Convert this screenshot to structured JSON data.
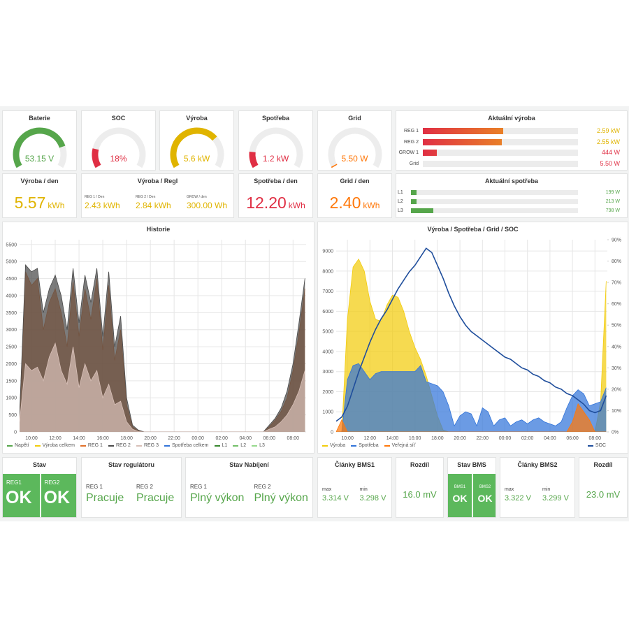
{
  "gauges": [
    {
      "title": "Baterie",
      "value": 53.15,
      "label": "53.15 V",
      "range": [
        42,
        56
      ],
      "color": "#56a64b"
    },
    {
      "title": "SOC",
      "value": 18,
      "label": "18%",
      "range": [
        0,
        100
      ],
      "color": "#e02f44"
    },
    {
      "title": "Výroba",
      "value": 5.6,
      "label": "5.6 kW",
      "range": [
        0,
        8
      ],
      "color": "#e0b400"
    },
    {
      "title": "Spotřeba",
      "value": 1.2,
      "label": "1.2 kW",
      "range": [
        0,
        8
      ],
      "color": "#e02f44"
    },
    {
      "title": "Grid",
      "value": 5.5,
      "label": "5.50 W",
      "range": [
        0,
        500
      ],
      "color": "#ff780a"
    }
  ],
  "aktualni_vyroba": {
    "title": "Aktuální výroba",
    "max": 5000,
    "rows": [
      {
        "name": "REG 1",
        "value": 2590,
        "label": "2.59 kW",
        "color": "#e0b400"
      },
      {
        "name": "REG 2",
        "value": 2550,
        "label": "2.55 kW",
        "color": "#e0b400"
      },
      {
        "name": "GROW 1",
        "value": 444,
        "label": "444 W",
        "color": "#e02f44"
      },
      {
        "name": "Grid",
        "value": 5.5,
        "label": "5.50 W",
        "color": "#e02f44"
      }
    ]
  },
  "aktualni_spotreba": {
    "title": "Aktuální spotřeba",
    "max": 6000,
    "rows": [
      {
        "name": "L1",
        "value": 199,
        "label": "199 W",
        "color": "#56a64b"
      },
      {
        "name": "L2",
        "value": 213,
        "label": "213 W",
        "color": "#56a64b"
      },
      {
        "name": "L3",
        "value": 798,
        "label": "798 W",
        "color": "#56a64b"
      }
    ]
  },
  "stats": [
    {
      "title": "Výroba / den",
      "value": "5.57",
      "unit": "kWh",
      "color": "#e0b400"
    },
    {
      "title": "Spotřeba / den",
      "value": "12.20",
      "unit": "kWh",
      "color": "#e02f44"
    },
    {
      "title": "Grid / den",
      "value": "2.40",
      "unit": "kWh",
      "color": "#ff780a"
    }
  ],
  "vyroba_regl": {
    "title": "Výroba / Regl",
    "color": "#e0b400",
    "items": [
      {
        "label": "REG 1 / Den",
        "value": "2.43 kWh"
      },
      {
        "label": "REG 2 / Den",
        "value": "2.84 kWh"
      },
      {
        "label": "GROW / den",
        "value": "300.00 Wh"
      }
    ]
  },
  "historie": {
    "type": "area",
    "title": "Historie",
    "grid": true,
    "x": [
      9,
      9.5,
      10,
      10.5,
      11,
      11.5,
      12,
      12.5,
      13,
      13.5,
      14,
      14.5,
      15,
      15.5,
      16,
      16.5,
      17,
      17.5,
      18,
      18.5,
      19,
      19.5,
      20,
      20.5,
      21,
      21.5,
      22,
      22.5,
      23,
      23.5,
      24,
      24.5,
      25,
      25.5,
      26,
      26.5,
      27,
      27.5,
      28,
      28.5,
      29,
      29.5,
      30,
      30.5,
      31,
      31.5,
      32,
      32.5,
      33
    ],
    "xlim": [
      9,
      33.1
    ],
    "ylim": [
      0,
      5640
    ],
    "yticks": [
      0,
      500,
      1000,
      1500,
      2000,
      2500,
      3000,
      3500,
      4000,
      4500,
      5000,
      5500
    ],
    "xticks": [
      {
        "value": 10,
        "label": "10:00"
      },
      {
        "value": 12,
        "label": "12:00"
      },
      {
        "value": 14,
        "label": "14:00"
      },
      {
        "value": 16,
        "label": "16:00"
      },
      {
        "value": 18,
        "label": "18:00"
      },
      {
        "value": 20,
        "label": "20:00"
      },
      {
        "value": 22,
        "label": "22:00"
      },
      {
        "value": 24,
        "label": "00:00"
      },
      {
        "value": 26,
        "label": "02:00"
      },
      {
        "value": 28,
        "label": "04:00"
      },
      {
        "value": 30,
        "label": "06:00"
      },
      {
        "value": 32,
        "label": "08:00"
      }
    ],
    "series": [
      {
        "name": "Napětí",
        "color": "#56a64b"
      },
      {
        "name": "Výroba celkem",
        "color": "#f2cc0c"
      },
      {
        "name": "REG 1",
        "color": "#e0702a",
        "values": [
          400,
          4700,
          4300,
          4500,
          3000,
          3800,
          4200,
          3500,
          2500,
          4400,
          2800,
          4200,
          3300,
          4500,
          2400,
          4300,
          2100,
          3000,
          800,
          150,
          30,
          0,
          0,
          0,
          0,
          0,
          0,
          0,
          0,
          0,
          0,
          0,
          0,
          0,
          0,
          0,
          0,
          0,
          0,
          0,
          0,
          0,
          150,
          350,
          600,
          1000,
          1800,
          2900,
          4200
        ]
      },
      {
        "name": "REG 2",
        "color": "#4a4a4a",
        "values": [
          500,
          4900,
          4700,
          4800,
          3500,
          4200,
          4600,
          4000,
          3000,
          4800,
          3200,
          4600,
          3800,
          4800,
          2800,
          4700,
          2500,
          3400,
          1000,
          200,
          50,
          0,
          0,
          0,
          0,
          0,
          0,
          0,
          0,
          0,
          0,
          0,
          0,
          0,
          0,
          0,
          0,
          0,
          0,
          0,
          0,
          0,
          200,
          400,
          700,
          1200,
          2000,
          3200,
          4500
        ]
      },
      {
        "name": "REG 3",
        "color": "#d8c0b8",
        "values": [
          300,
          2000,
          1800,
          1900,
          1500,
          2200,
          2600,
          1800,
          1400,
          2500,
          1300,
          2000,
          1500,
          1800,
          1000,
          1400,
          800,
          900,
          300,
          80,
          10,
          0,
          0,
          0,
          0,
          0,
          0,
          0,
          0,
          0,
          0,
          0,
          0,
          0,
          0,
          0,
          0,
          0,
          0,
          0,
          0,
          0,
          80,
          150,
          300,
          500,
          800,
          1200,
          1800
        ]
      },
      {
        "name": "Spotřeba celkem",
        "color": "#3274d9"
      },
      {
        "name": "L1",
        "color": "#37872d"
      },
      {
        "name": "L2",
        "color": "#73bf69"
      },
      {
        "name": "L3",
        "color": "#96d98d"
      }
    ]
  },
  "vyroba_spotreba": {
    "type": "area",
    "title": "Výroba / Spotřeba / Grid / SOC",
    "grid": true,
    "x": [
      9,
      9.5,
      10,
      10.5,
      11,
      11.5,
      12,
      12.5,
      13,
      13.5,
      14,
      14.5,
      15,
      15.5,
      16,
      16.5,
      17,
      17.5,
      18,
      18.5,
      19,
      19.5,
      20,
      20.5,
      21,
      21.5,
      22,
      22.5,
      23,
      23.5,
      24,
      24.5,
      25,
      25.5,
      26,
      26.5,
      27,
      27.5,
      28,
      28.5,
      29,
      29.5,
      30,
      30.5,
      31,
      31.5,
      32,
      32.5,
      33
    ],
    "xlim": [
      9,
      33.1
    ],
    "ylim": [
      0,
      9560
    ],
    "y2lim": [
      0,
      90
    ],
    "yticks": [
      0,
      1000,
      2000,
      3000,
      4000,
      5000,
      6000,
      7000,
      8000,
      9000
    ],
    "y2ticks": [
      {
        "value": 0,
        "label": "0%"
      },
      {
        "value": 10,
        "label": "10%"
      },
      {
        "value": 20,
        "label": "20%"
      },
      {
        "value": 30,
        "label": "30%"
      },
      {
        "value": 40,
        "label": "40%"
      },
      {
        "value": 50,
        "label": "50%"
      },
      {
        "value": 60,
        "label": "60%"
      },
      {
        "value": 70,
        "label": "70%"
      },
      {
        "value": 80,
        "label": "80%"
      },
      {
        "value": 90,
        "label": "90%"
      }
    ],
    "xticks": [
      {
        "value": 10,
        "label": "10:00"
      },
      {
        "value": 12,
        "label": "12:00"
      },
      {
        "value": 14,
        "label": "14:00"
      },
      {
        "value": 16,
        "label": "16:00"
      },
      {
        "value": 18,
        "label": "18:00"
      },
      {
        "value": 20,
        "label": "20:00"
      },
      {
        "value": 22,
        "label": "22:00"
      },
      {
        "value": 24,
        "label": "00:00"
      },
      {
        "value": 26,
        "label": "02:00"
      },
      {
        "value": 28,
        "label": "04:00"
      },
      {
        "value": 30,
        "label": "06:00"
      },
      {
        "value": 32,
        "label": "08:00"
      }
    ],
    "series": [
      {
        "name": "Výroba",
        "color": "#f2cc0c",
        "values": [
          0,
          0,
          5600,
          8200,
          8600,
          8000,
          6500,
          5600,
          5500,
          6300,
          6800,
          6700,
          6000,
          5000,
          4200,
          3600,
          2800,
          1800,
          800,
          100,
          0,
          0,
          0,
          0,
          0,
          0,
          0,
          0,
          0,
          0,
          0,
          0,
          0,
          0,
          0,
          0,
          0,
          0,
          0,
          0,
          0,
          0,
          0,
          0,
          0,
          0,
          0,
          1500,
          7500
        ]
      },
      {
        "name": "Spotřeba",
        "color": "#3274d9",
        "values": [
          0,
          0,
          2600,
          3300,
          3400,
          3000,
          2600,
          2900,
          3000,
          3000,
          3000,
          3000,
          3000,
          3000,
          3000,
          3300,
          2500,
          2400,
          2300,
          2000,
          1300,
          300,
          800,
          1000,
          900,
          300,
          1200,
          1000,
          300,
          600,
          700,
          300,
          500,
          600,
          400,
          600,
          700,
          500,
          400,
          300,
          500,
          1200,
          1800,
          2100,
          1900,
          1300,
          1400,
          1500,
          2200
        ]
      },
      {
        "name": "Veřejná síť",
        "color": "#ff780a",
        "values": [
          0,
          600,
          0,
          0,
          0,
          0,
          0,
          0,
          0,
          0,
          0,
          0,
          0,
          0,
          0,
          0,
          0,
          0,
          0,
          0,
          0,
          0,
          0,
          0,
          0,
          0,
          0,
          0,
          0,
          0,
          0,
          0,
          0,
          0,
          0,
          0,
          0,
          0,
          0,
          0,
          0,
          0,
          500,
          1400,
          1000,
          600,
          0,
          0,
          0
        ]
      },
      {
        "name": "SOC",
        "color": "#1f4e9c",
        "type": "line",
        "axis": "y2",
        "values": [
          5,
          7,
          12,
          20,
          28,
          35,
          42,
          48,
          53,
          57,
          62,
          67,
          71,
          75,
          78,
          82,
          86,
          84,
          78,
          72,
          65,
          59,
          54,
          50,
          47,
          45,
          43,
          41,
          39,
          37,
          35,
          34,
          32,
          30,
          29,
          27,
          26,
          24,
          23,
          21,
          20,
          18,
          17,
          15,
          13,
          10,
          9,
          10,
          17
        ]
      }
    ]
  },
  "status": [
    {
      "title": "Stav",
      "items": [
        {
          "label": "REG1",
          "value": "OK"
        },
        {
          "label": "REG2",
          "value": "OK"
        }
      ]
    },
    {
      "title": "Stav regulátoru",
      "items": [
        {
          "label": "REG 1",
          "value": "Pracuje"
        },
        {
          "label": "REG 2",
          "value": "Pracuje"
        }
      ]
    },
    {
      "title": "Stav Nabíjení",
      "items": [
        {
          "label": "REG 1",
          "value": "Plný výkon"
        },
        {
          "label": "REG 2",
          "value": "Plný výkon"
        }
      ]
    },
    {
      "title": "Články BMS1",
      "items": [
        {
          "label": "max",
          "value": "3.314 V"
        },
        {
          "label": "min",
          "value": "3.298 V"
        }
      ]
    },
    {
      "title": "Rozdíl",
      "items": [
        {
          "value": "16.0 mV"
        }
      ]
    },
    {
      "title": "Stav BMS",
      "items": [
        {
          "label": "BMS1",
          "value": "OK"
        },
        {
          "label": "BMS2",
          "value": "OK"
        }
      ]
    },
    {
      "title": "Články BMS2",
      "items": [
        {
          "label": "max",
          "value": "3.322 V"
        },
        {
          "label": "min",
          "value": "3.299 V"
        }
      ]
    },
    {
      "title": "Rozdíl",
      "items": [
        {
          "value": "23.0 mV"
        }
      ]
    }
  ]
}
